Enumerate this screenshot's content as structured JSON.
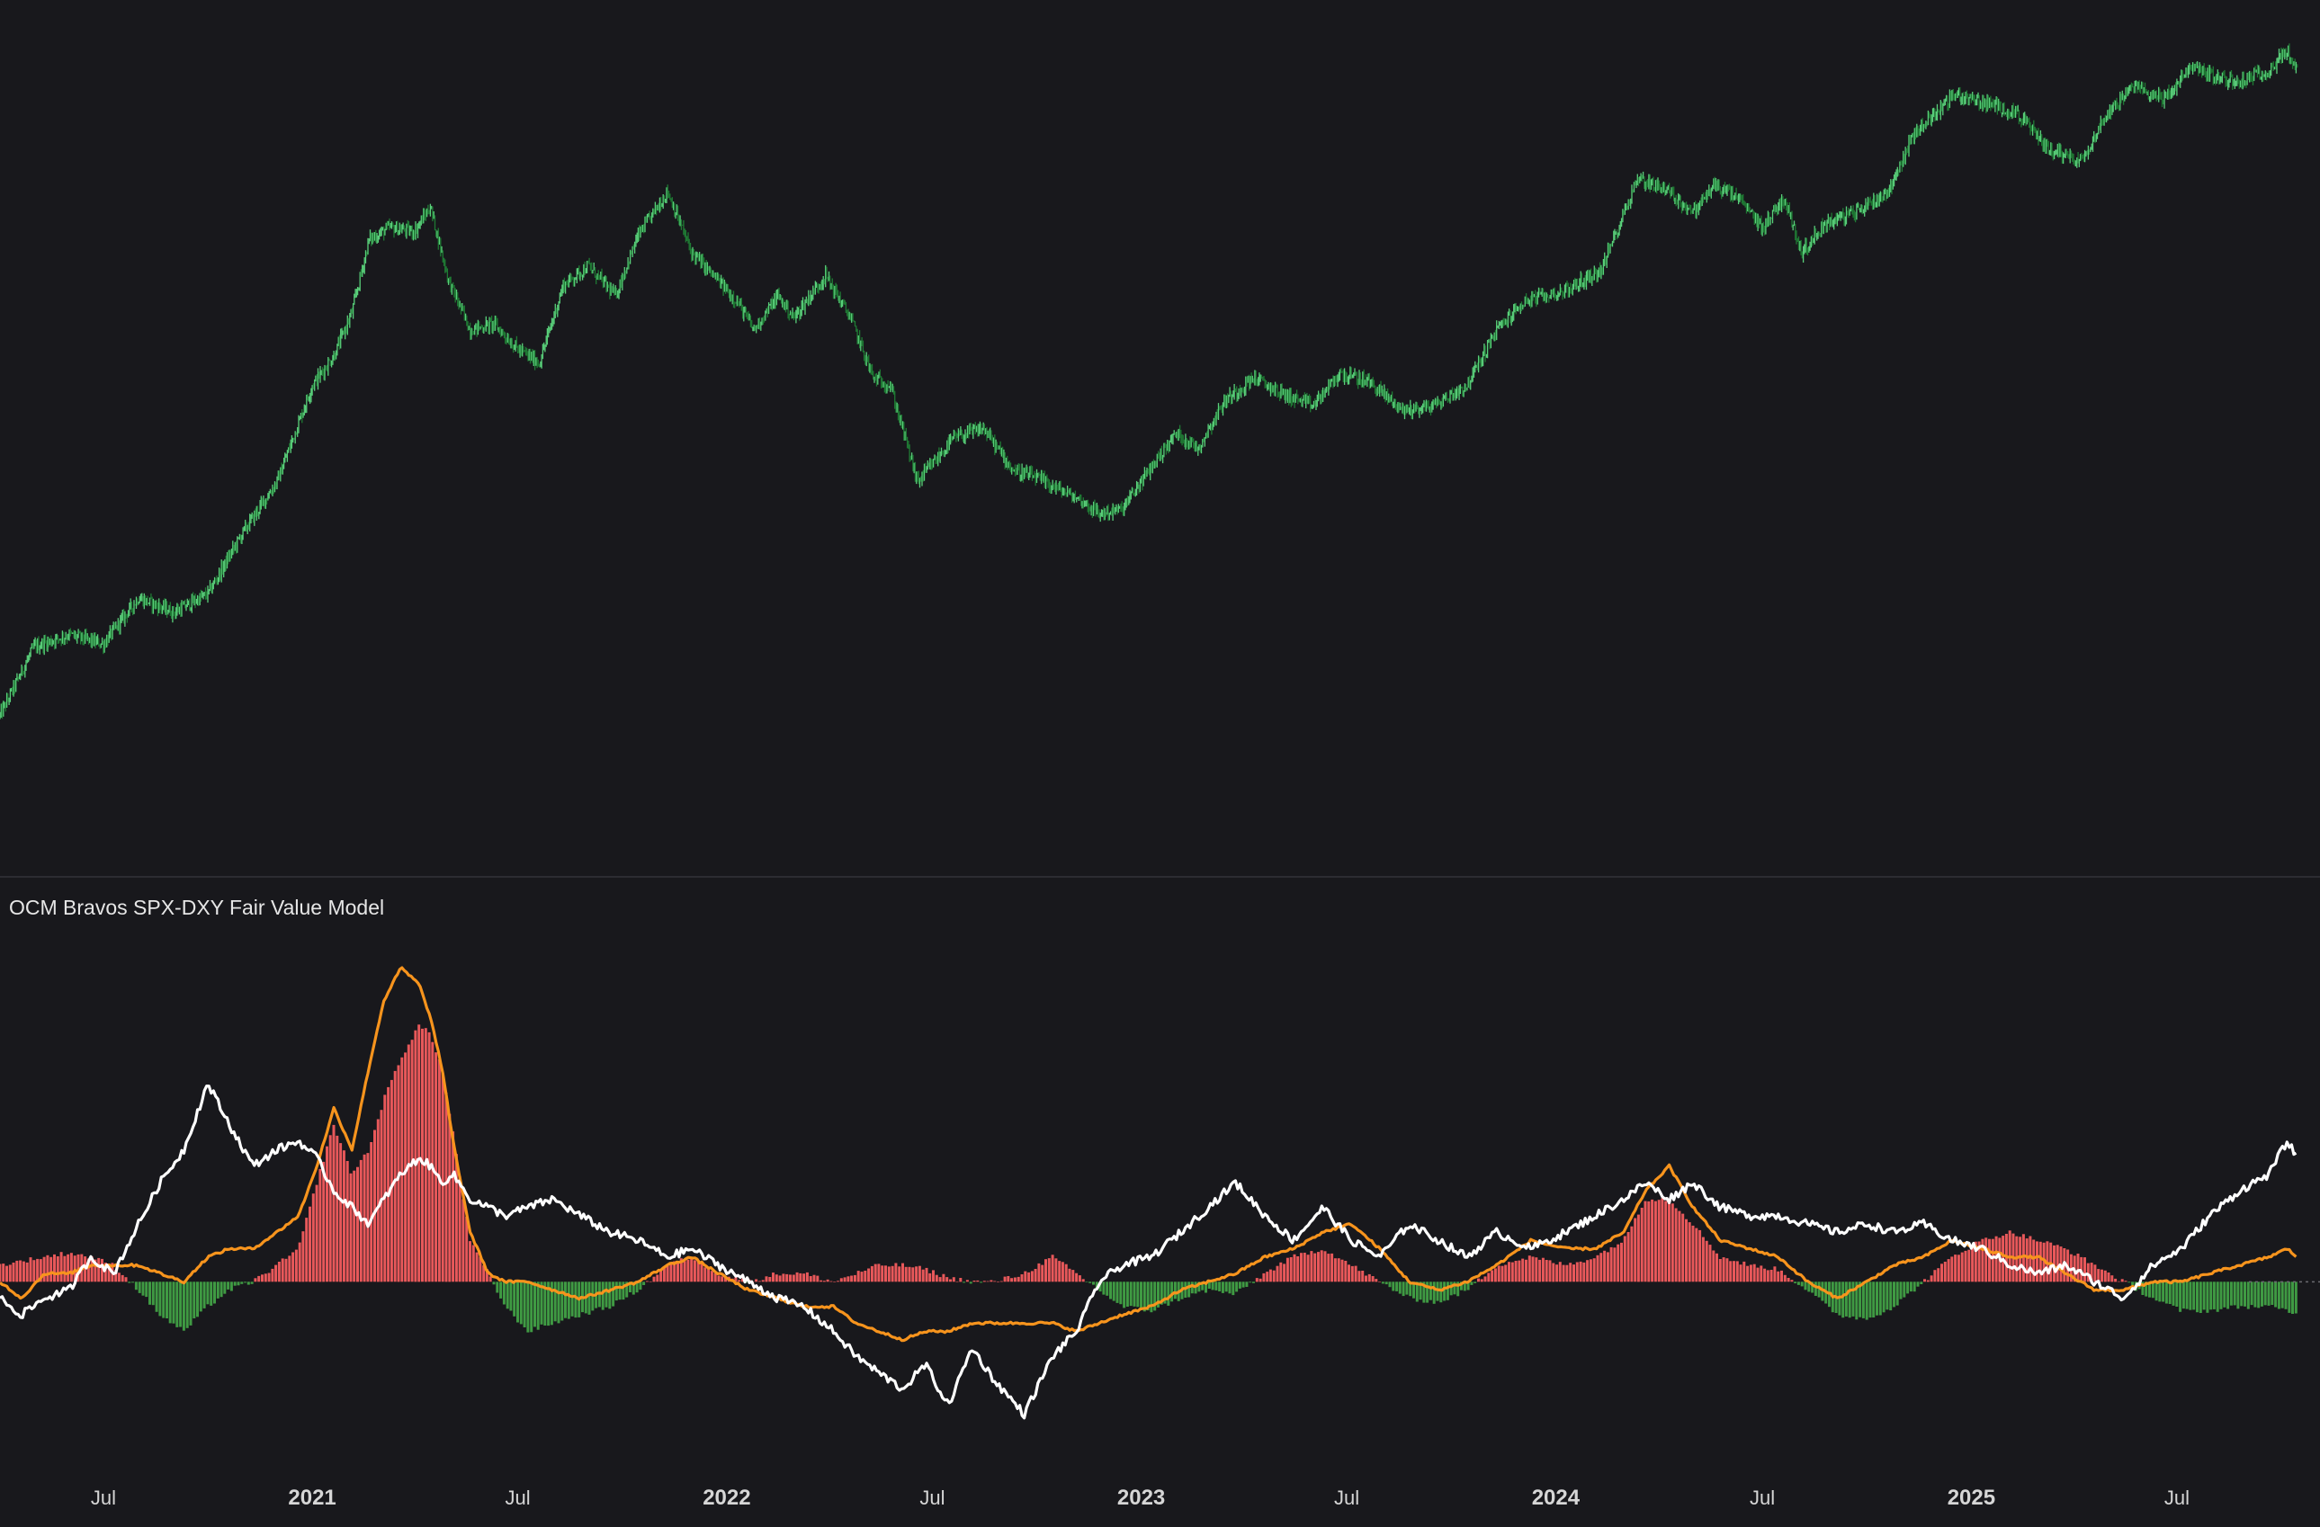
{
  "indicator_title": "OCM Bravos SPX-DXY Fair Value Model",
  "colors": {
    "background": "#18181c",
    "price_up": "#59d07a",
    "price_down": "#1f7a34",
    "hist_pos": "#e8585a",
    "hist_neg": "#3f9a43",
    "white_line": "#ffffff",
    "orange_line": "#f7941d",
    "separator": "#2c2c32",
    "axis_text": "#d6d6d6"
  },
  "chart_data": [
    {
      "type": "line",
      "title": "",
      "x_type": "date",
      "price_scale": "log",
      "x": [
        "2020-04-01",
        "2020-05-01",
        "2020-06-01",
        "2020-07-01",
        "2020-08-01",
        "2020-09-01",
        "2020-10-01",
        "2020-11-01",
        "2020-12-01",
        "2021-01-01",
        "2021-01-20",
        "2021-02-05",
        "2021-02-20",
        "2021-03-10",
        "2021-04-01",
        "2021-04-15",
        "2021-05-01",
        "2021-05-20",
        "2021-06-10",
        "2021-07-01",
        "2021-07-20",
        "2021-08-10",
        "2021-09-01",
        "2021-09-25",
        "2021-10-15",
        "2021-11-10",
        "2021-12-01",
        "2021-12-20",
        "2022-01-10",
        "2022-01-25",
        "2022-02-15",
        "2022-03-01",
        "2022-03-29",
        "2022-04-20",
        "2022-05-10",
        "2022-05-25",
        "2022-06-18",
        "2022-07-01",
        "2022-07-20",
        "2022-08-15",
        "2022-09-10",
        "2022-10-01",
        "2022-11-09",
        "2022-11-25",
        "2022-12-15",
        "2023-01-15",
        "2023-02-01",
        "2023-02-20",
        "2023-03-15",
        "2023-04-10",
        "2023-05-05",
        "2023-06-01",
        "2023-06-25",
        "2023-07-20",
        "2023-08-20",
        "2023-09-15",
        "2023-10-15",
        "2023-11-10",
        "2023-12-05",
        "2024-01-10",
        "2024-02-10",
        "2024-03-13",
        "2024-04-05",
        "2024-05-01",
        "2024-05-20",
        "2024-06-10",
        "2024-07-01",
        "2024-07-20",
        "2024-08-05",
        "2024-08-25",
        "2024-09-20",
        "2024-10-20",
        "2024-11-12",
        "2024-12-05",
        "2024-12-17",
        "2025-01-15",
        "2025-02-10",
        "2025-03-10",
        "2025-04-08",
        "2025-05-01",
        "2025-05-25",
        "2025-06-20",
        "2025-07-15",
        "2025-08-05",
        "2025-08-25",
        "2025-09-20",
        "2025-10-06",
        "2025-10-15"
      ],
      "y": [
        6800,
        9200,
        9700,
        9300,
        11400,
        10700,
        11600,
        15200,
        19000,
        29000,
        33000,
        40000,
        55000,
        58000,
        57000,
        63500,
        46000,
        37000,
        38000,
        34000,
        32000,
        45000,
        49000,
        43000,
        56000,
        68000,
        52000,
        47000,
        42000,
        37000,
        43000,
        39000,
        47000,
        39000,
        30000,
        29000,
        19000,
        20500,
        23000,
        24000,
        20000,
        19300,
        17500,
        16500,
        16800,
        21000,
        23500,
        22000,
        27000,
        30000,
        28000,
        26500,
        30500,
        29500,
        26000,
        26500,
        29000,
        37000,
        42000,
        44000,
        48000,
        72000,
        69000,
        62000,
        70000,
        66000,
        58000,
        66000,
        52000,
        59000,
        62000,
        68000,
        88000,
        98000,
        104000,
        100000,
        96000,
        82000,
        78000,
        96000,
        108000,
        102000,
        118000,
        112000,
        110000,
        116000,
        126000,
        115000
      ],
      "ylim": [
        4000,
        140000
      ],
      "x_ticks": [
        "Jul",
        "2021",
        "Jul",
        "2022",
        "Jul",
        "2023",
        "Jul",
        "2024",
        "Jul",
        "2025",
        "Jul"
      ],
      "grid": false
    },
    {
      "type": "line",
      "title": "OCM Bravos SPX-DXY Fair Value Model",
      "x_type": "date",
      "x": [
        "2020-04-01",
        "2020-04-20",
        "2020-05-10",
        "2020-06-01",
        "2020-06-20",
        "2020-07-10",
        "2020-08-01",
        "2020-08-20",
        "2020-09-10",
        "2020-10-01",
        "2020-10-20",
        "2020-11-10",
        "2020-12-01",
        "2020-12-20",
        "2021-01-05",
        "2021-01-20",
        "2021-02-05",
        "2021-02-20",
        "2021-03-05",
        "2021-03-20",
        "2021-04-05",
        "2021-04-15",
        "2021-04-25",
        "2021-05-05",
        "2021-05-20",
        "2021-06-05",
        "2021-06-20",
        "2021-07-10",
        "2021-08-01",
        "2021-08-25",
        "2021-09-20",
        "2021-10-15",
        "2021-11-10",
        "2021-12-01",
        "2021-12-25",
        "2022-01-20",
        "2022-02-15",
        "2022-03-10",
        "2022-04-05",
        "2022-04-25",
        "2022-05-15",
        "2022-06-05",
        "2022-06-25",
        "2022-07-15",
        "2022-08-05",
        "2022-08-25",
        "2022-09-20",
        "2022-10-15",
        "2022-11-05",
        "2022-11-25",
        "2022-12-15",
        "2023-01-10",
        "2023-02-05",
        "2023-03-01",
        "2023-03-25",
        "2023-04-20",
        "2023-05-15",
        "2023-06-10",
        "2023-07-05",
        "2023-07-30",
        "2023-08-25",
        "2023-09-20",
        "2023-10-15",
        "2023-11-10",
        "2023-12-10",
        "2024-01-10",
        "2024-02-05",
        "2024-03-01",
        "2024-03-20",
        "2024-04-10",
        "2024-05-01",
        "2024-05-25",
        "2024-06-20",
        "2024-07-15",
        "2024-08-10",
        "2024-09-05",
        "2024-10-01",
        "2024-10-25",
        "2024-11-20",
        "2024-12-15",
        "2025-01-10",
        "2025-02-05",
        "2025-03-01",
        "2025-03-25",
        "2025-04-20",
        "2025-05-15",
        "2025-06-10",
        "2025-07-05",
        "2025-07-30",
        "2025-08-25",
        "2025-09-20",
        "2025-10-06",
        "2025-10-15"
      ],
      "series": [
        {
          "key": "white",
          "values": [
            -0.2,
            -0.4,
            -0.2,
            -0.1,
            0.3,
            0.1,
            0.7,
            1.2,
            1.6,
            2.4,
            1.9,
            1.4,
            1.6,
            1.7,
            1.5,
            1.1,
            0.9,
            0.7,
            1.0,
            1.3,
            1.5,
            1.4,
            1.2,
            1.3,
            1.0,
            0.9,
            0.8,
            0.9,
            1.0,
            0.8,
            0.6,
            0.5,
            0.3,
            0.4,
            0.2,
            0.0,
            -0.2,
            -0.3,
            -0.6,
            -0.9,
            -1.1,
            -1.3,
            -1.0,
            -1.5,
            -0.8,
            -1.2,
            -1.6,
            -0.9,
            -0.6,
            0.0,
            0.2,
            0.3,
            0.6,
            0.9,
            1.2,
            0.8,
            0.5,
            0.9,
            0.5,
            0.3,
            0.7,
            0.5,
            0.3,
            0.6,
            0.4,
            0.6,
            0.8,
            1.0,
            1.2,
            1.0,
            1.2,
            0.9,
            0.8,
            0.8,
            0.7,
            0.6,
            0.7,
            0.6,
            0.7,
            0.5,
            0.4,
            0.2,
            0.1,
            0.2,
            0.0,
            -0.2,
            0.2,
            0.4,
            0.8,
            1.1,
            1.3,
            1.7,
            1.5
          ]
        },
        {
          "key": "orange",
          "values": [
            0.0,
            -0.2,
            0.1,
            0.1,
            0.2,
            0.2,
            0.2,
            0.1,
            0.0,
            0.3,
            0.4,
            0.4,
            0.6,
            0.8,
            1.4,
            2.1,
            1.6,
            2.6,
            3.4,
            3.8,
            3.6,
            3.2,
            2.6,
            1.7,
            0.6,
            0.1,
            0.0,
            0.0,
            -0.1,
            -0.2,
            -0.1,
            0.0,
            0.2,
            0.3,
            0.1,
            -0.1,
            -0.2,
            -0.3,
            -0.3,
            -0.5,
            -0.6,
            -0.7,
            -0.6,
            -0.6,
            -0.5,
            -0.5,
            -0.5,
            -0.5,
            -0.6,
            -0.5,
            -0.4,
            -0.3,
            -0.1,
            0.0,
            0.1,
            0.3,
            0.4,
            0.6,
            0.7,
            0.4,
            0.0,
            -0.1,
            0.0,
            0.2,
            0.5,
            0.4,
            0.4,
            0.6,
            1.1,
            1.4,
            0.9,
            0.5,
            0.4,
            0.3,
            0.0,
            -0.2,
            0.0,
            0.2,
            0.3,
            0.5,
            0.4,
            0.3,
            0.3,
            0.1,
            -0.1,
            -0.1,
            0.0,
            0.0,
            0.1,
            0.2,
            0.3,
            0.4,
            0.3
          ]
        },
        {
          "key": "histogram",
          "values": [
            0.2,
            0.25,
            0.3,
            0.35,
            0.3,
            0.2,
            -0.1,
            -0.4,
            -0.6,
            -0.3,
            -0.1,
            0.0,
            0.2,
            0.4,
            1.2,
            1.9,
            1.3,
            1.6,
            2.2,
            2.7,
            3.1,
            3.0,
            2.6,
            1.8,
            0.5,
            0.1,
            -0.3,
            -0.6,
            -0.5,
            -0.4,
            -0.3,
            -0.1,
            0.2,
            0.3,
            0.1,
            0.0,
            0.1,
            0.1,
            0.0,
            0.1,
            0.2,
            0.2,
            0.15,
            0.05,
            0.0,
            0.0,
            0.1,
            0.3,
            0.1,
            -0.1,
            -0.3,
            -0.35,
            -0.2,
            -0.1,
            -0.15,
            0.1,
            0.3,
            0.4,
            0.2,
            0.0,
            -0.2,
            -0.25,
            -0.1,
            0.2,
            0.3,
            0.2,
            0.3,
            0.5,
            1.0,
            1.0,
            0.7,
            0.3,
            0.2,
            0.15,
            -0.1,
            -0.4,
            -0.45,
            -0.3,
            0.0,
            0.3,
            0.5,
            0.6,
            0.5,
            0.4,
            0.2,
            0.0,
            -0.2,
            -0.35,
            -0.35,
            -0.3,
            -0.3,
            -0.35,
            -0.4
          ]
        }
      ],
      "ylim": [
        -1.9,
        4.3
      ],
      "zero_line": true,
      "grid": false
    }
  ]
}
